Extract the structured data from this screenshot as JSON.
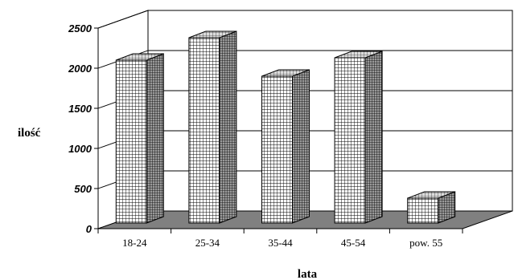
{
  "chart_data": {
    "type": "bar",
    "title": "",
    "xlabel": "lata",
    "ylabel": "ilość",
    "categories": [
      "18-24",
      "25-34",
      "35-44",
      "45-54",
      "pow. 55"
    ],
    "values": [
      2100,
      2380,
      1900,
      2130,
      380
    ],
    "ylim": [
      0,
      2500
    ],
    "yticks": [
      "0",
      "500",
      "1000",
      "1500",
      "2000",
      "2500"
    ],
    "grid": true,
    "style": "3d",
    "colors": {
      "bar_fill": "#ffffff",
      "bar_grid": "#000000",
      "floor": "#808080"
    }
  }
}
